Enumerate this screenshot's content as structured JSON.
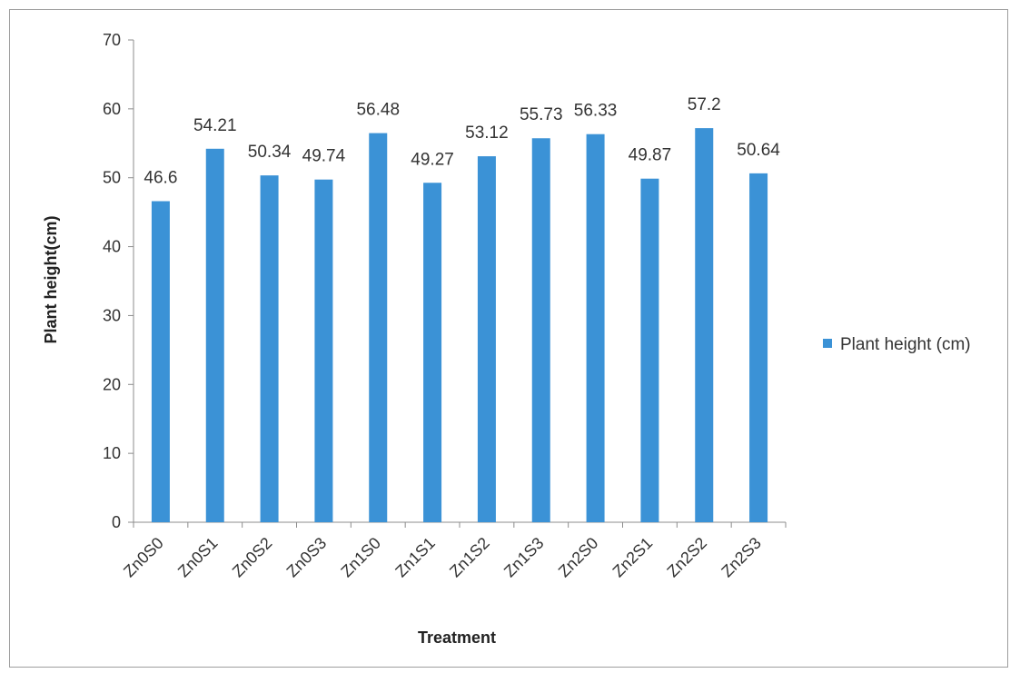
{
  "chart_data": {
    "type": "bar",
    "title": "",
    "xlabel": "Treatment",
    "ylabel": "Plant height(cm)",
    "ylim": [
      0,
      70
    ],
    "yticks": [
      0,
      10,
      20,
      30,
      40,
      50,
      60,
      70
    ],
    "grid": false,
    "legend_position": "right",
    "categories": [
      "Zn0S0",
      "Zn0S1",
      "Zn0S2",
      "Zn0S3",
      "Zn1S0",
      "Zn1S1",
      "Zn1S2",
      "Zn1S3",
      "Zn2S0",
      "Zn2S1",
      "Zn2S2",
      "Zn2S3"
    ],
    "series": [
      {
        "name": "Plant height (cm)",
        "color": "#3b92d6",
        "values": [
          46.6,
          54.21,
          50.34,
          49.74,
          56.48,
          49.27,
          53.12,
          55.73,
          56.33,
          49.87,
          57.2,
          50.64
        ]
      }
    ]
  }
}
